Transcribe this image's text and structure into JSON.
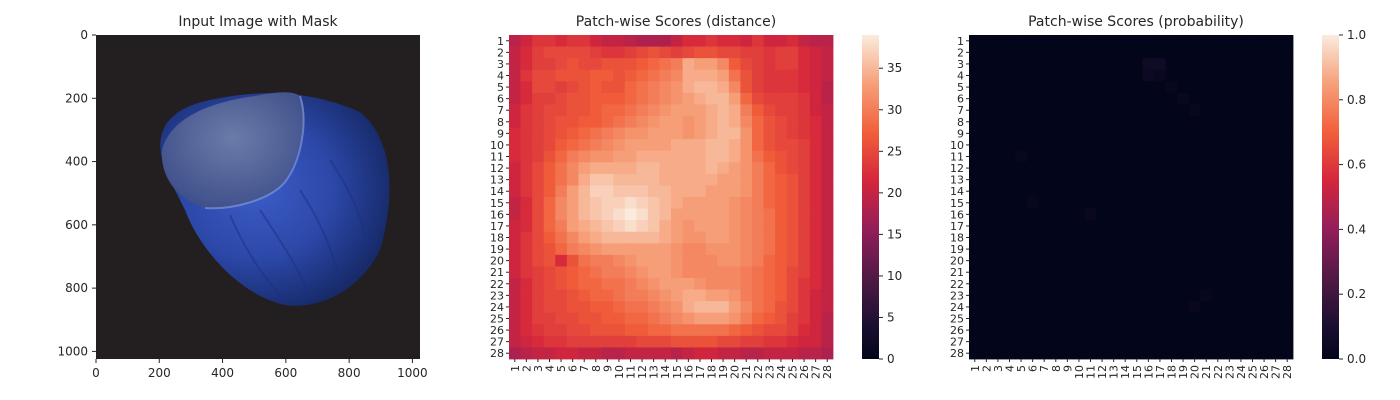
{
  "chart_data": [
    {
      "type": "image",
      "title": "Input Image with Mask",
      "xlim": [
        0,
        1024
      ],
      "ylim": [
        1024,
        0
      ],
      "xticks": [
        0,
        200,
        400,
        600,
        800,
        1000
      ],
      "yticks": [
        0,
        200,
        400,
        600,
        800,
        1000
      ],
      "image_content": "blue-tinted hazelnut on dark background"
    },
    {
      "type": "heatmap",
      "title": "Patch-wise Scores (distance)",
      "colormap": "rocket",
      "rows": 28,
      "cols": 28,
      "row_labels": [
        "1",
        "2",
        "3",
        "4",
        "5",
        "6",
        "7",
        "8",
        "9",
        "10",
        "11",
        "12",
        "13",
        "14",
        "15",
        "16",
        "17",
        "18",
        "19",
        "20",
        "21",
        "22",
        "23",
        "24",
        "25",
        "26",
        "27",
        "28"
      ],
      "col_labels": [
        "1",
        "2",
        "3",
        "4",
        "5",
        "6",
        "7",
        "8",
        "9",
        "10",
        "11",
        "12",
        "13",
        "14",
        "15",
        "16",
        "17",
        "18",
        "19",
        "20",
        "21",
        "22",
        "23",
        "24",
        "25",
        "26",
        "27",
        "28"
      ],
      "vmin": 0,
      "vmax": 39,
      "colorbar_ticks": [
        0,
        5,
        10,
        15,
        20,
        25,
        30,
        35
      ],
      "values": [
        [
          19,
          21,
          23,
          23,
          22,
          23,
          23,
          21,
          20,
          20,
          19,
          18,
          18,
          18,
          20,
          22,
          22,
          23,
          22,
          22,
          21,
          23,
          21,
          21,
          22,
          20,
          19,
          19
        ],
        [
          20,
          22,
          24,
          25,
          25,
          25,
          25,
          24,
          23,
          23,
          24,
          25,
          26,
          25,
          24,
          25,
          26,
          26,
          25,
          25,
          24,
          24,
          23,
          24,
          24,
          22,
          21,
          20
        ],
        [
          20,
          22,
          24,
          24,
          25,
          26,
          25,
          25,
          26,
          26,
          26,
          27,
          28,
          29,
          30,
          34,
          33,
          33,
          31,
          27,
          25,
          24,
          23,
          24,
          24,
          22,
          21,
          20
        ],
        [
          20,
          23,
          25,
          25,
          26,
          26,
          26,
          27,
          27,
          26,
          27,
          28,
          29,
          30,
          31,
          34,
          34,
          34,
          33,
          29,
          26,
          24,
          23,
          23,
          23,
          22,
          21,
          20
        ],
        [
          20,
          22,
          25,
          25,
          24,
          25,
          26,
          27,
          26,
          26,
          28,
          29,
          30,
          31,
          32,
          34,
          35,
          35,
          34,
          31,
          26,
          24,
          23,
          23,
          23,
          22,
          21,
          19
        ],
        [
          20,
          22,
          24,
          24,
          25,
          26,
          26,
          27,
          27,
          27,
          28,
          29,
          30,
          31,
          32,
          33,
          34,
          35,
          35,
          33,
          28,
          25,
          24,
          24,
          24,
          23,
          21,
          19
        ],
        [
          21,
          23,
          24,
          25,
          25,
          26,
          26,
          27,
          28,
          28,
          29,
          30,
          31,
          32,
          33,
          33,
          33,
          34,
          35,
          34,
          30,
          27,
          25,
          24,
          24,
          23,
          21,
          20
        ],
        [
          21,
          23,
          24,
          25,
          26,
          26,
          27,
          27,
          28,
          29,
          30,
          31,
          32,
          33,
          33,
          32,
          33,
          34,
          35,
          34,
          31,
          28,
          26,
          25,
          24,
          23,
          22,
          20
        ],
        [
          22,
          23,
          24,
          25,
          26,
          27,
          28,
          29,
          30,
          31,
          32,
          32,
          33,
          33,
          33,
          32,
          33,
          34,
          35,
          35,
          32,
          28,
          26,
          25,
          24,
          23,
          22,
          20
        ],
        [
          22,
          23,
          24,
          25,
          27,
          28,
          29,
          30,
          31,
          32,
          33,
          33,
          33,
          33,
          34,
          34,
          34,
          35,
          35,
          34,
          32,
          28,
          26,
          25,
          25,
          24,
          22,
          20
        ],
        [
          22,
          23,
          24,
          26,
          28,
          30,
          31,
          32,
          32,
          33,
          33,
          34,
          34,
          34,
          34,
          34,
          34,
          35,
          35,
          34,
          32,
          29,
          27,
          26,
          25,
          24,
          22,
          20
        ],
        [
          21,
          23,
          25,
          27,
          29,
          31,
          33,
          34,
          34,
          34,
          34,
          35,
          35,
          34,
          34,
          34,
          34,
          35,
          34,
          33,
          32,
          30,
          28,
          26,
          25,
          24,
          22,
          20
        ],
        [
          21,
          23,
          25,
          27,
          29,
          31,
          34,
          36,
          36,
          35,
          35,
          35,
          35,
          34,
          34,
          34,
          34,
          34,
          33,
          33,
          32,
          30,
          28,
          27,
          26,
          24,
          22,
          20
        ],
        [
          21,
          23,
          25,
          27,
          30,
          33,
          35,
          37,
          37,
          36,
          36,
          36,
          35,
          35,
          34,
          34,
          34,
          33,
          33,
          33,
          32,
          30,
          28,
          27,
          26,
          24,
          22,
          20
        ],
        [
          20,
          22,
          25,
          28,
          31,
          33,
          35,
          36,
          37,
          37,
          38,
          37,
          36,
          35,
          34,
          33,
          33,
          33,
          33,
          32,
          31,
          30,
          28,
          27,
          26,
          24,
          22,
          20
        ],
        [
          20,
          22,
          25,
          28,
          31,
          33,
          35,
          36,
          37,
          38,
          39,
          38,
          36,
          35,
          33,
          33,
          33,
          33,
          33,
          32,
          31,
          30,
          29,
          27,
          26,
          24,
          22,
          20
        ],
        [
          21,
          22,
          25,
          28,
          30,
          33,
          34,
          35,
          36,
          37,
          38,
          37,
          36,
          34,
          33,
          32,
          33,
          33,
          33,
          32,
          31,
          30,
          29,
          27,
          26,
          24,
          22,
          20
        ],
        [
          21,
          23,
          25,
          27,
          29,
          31,
          33,
          34,
          35,
          35,
          35,
          35,
          35,
          34,
          33,
          32,
          32,
          33,
          33,
          32,
          31,
          30,
          29,
          27,
          26,
          24,
          22,
          20
        ],
        [
          21,
          23,
          25,
          26,
          28,
          30,
          31,
          32,
          33,
          33,
          33,
          33,
          33,
          33,
          32,
          31,
          31,
          32,
          32,
          32,
          31,
          30,
          29,
          27,
          26,
          24,
          22,
          20
        ],
        [
          21,
          23,
          25,
          26,
          22,
          26,
          29,
          30,
          30,
          31,
          32,
          33,
          33,
          33,
          32,
          31,
          31,
          31,
          32,
          32,
          31,
          30,
          28,
          27,
          26,
          24,
          22,
          20
        ],
        [
          21,
          23,
          24,
          25,
          26,
          27,
          28,
          29,
          30,
          30,
          31,
          32,
          33,
          33,
          32,
          31,
          31,
          31,
          31,
          31,
          30,
          29,
          28,
          27,
          25,
          24,
          22,
          20
        ],
        [
          20,
          22,
          24,
          25,
          26,
          27,
          28,
          28,
          29,
          29,
          30,
          31,
          32,
          33,
          33,
          33,
          32,
          31,
          31,
          31,
          30,
          29,
          28,
          27,
          25,
          23,
          22,
          20
        ],
        [
          20,
          22,
          24,
          25,
          25,
          26,
          27,
          28,
          28,
          29,
          30,
          30,
          31,
          32,
          33,
          34,
          34,
          33,
          33,
          32,
          30,
          29,
          28,
          27,
          25,
          23,
          21,
          20
        ],
        [
          20,
          22,
          24,
          25,
          25,
          26,
          26,
          27,
          27,
          28,
          29,
          29,
          30,
          31,
          32,
          34,
          35,
          35,
          35,
          33,
          31,
          29,
          28,
          26,
          25,
          23,
          21,
          20
        ],
        [
          20,
          22,
          24,
          24,
          25,
          25,
          26,
          26,
          27,
          27,
          28,
          28,
          29,
          30,
          31,
          32,
          33,
          33,
          33,
          32,
          30,
          28,
          27,
          26,
          24,
          23,
          21,
          19
        ],
        [
          20,
          22,
          23,
          24,
          24,
          25,
          25,
          26,
          26,
          26,
          27,
          27,
          28,
          28,
          29,
          29,
          29,
          29,
          29,
          28,
          27,
          26,
          25,
          25,
          24,
          22,
          21,
          19
        ],
        [
          20,
          21,
          22,
          23,
          23,
          24,
          24,
          24,
          24,
          24,
          24,
          25,
          25,
          25,
          26,
          26,
          26,
          26,
          25,
          25,
          24,
          24,
          23,
          23,
          22,
          21,
          21,
          19
        ],
        [
          18,
          19,
          20,
          20,
          21,
          21,
          20,
          20,
          19,
          19,
          20,
          20,
          20,
          20,
          19,
          20,
          21,
          21,
          20,
          20,
          19,
          19,
          20,
          20,
          20,
          19,
          19,
          18
        ]
      ]
    },
    {
      "type": "heatmap",
      "title": "Patch-wise Scores (probability)",
      "colormap": "rocket",
      "rows": 28,
      "cols": 28,
      "row_labels": [
        "1",
        "2",
        "3",
        "4",
        "5",
        "6",
        "7",
        "8",
        "9",
        "10",
        "11",
        "12",
        "13",
        "14",
        "15",
        "16",
        "17",
        "18",
        "19",
        "20",
        "21",
        "22",
        "23",
        "24",
        "25",
        "26",
        "27",
        "28"
      ],
      "col_labels": [
        "1",
        "2",
        "3",
        "4",
        "5",
        "6",
        "7",
        "8",
        "9",
        "10",
        "11",
        "12",
        "13",
        "14",
        "15",
        "16",
        "17",
        "18",
        "19",
        "20",
        "21",
        "22",
        "23",
        "24",
        "25",
        "26",
        "27",
        "28"
      ],
      "vmin": 0,
      "vmax": 1,
      "colorbar_ticks": [
        "0.0",
        "0.2",
        "0.4",
        "0.6",
        "0.8",
        "1.0"
      ],
      "base_value": 0.0,
      "hotspots": [
        {
          "row": 3,
          "col": 16,
          "value": 0.05
        },
        {
          "row": 3,
          "col": 17,
          "value": 0.05
        },
        {
          "row": 4,
          "col": 16,
          "value": 0.04
        },
        {
          "row": 4,
          "col": 17,
          "value": 0.03
        },
        {
          "row": 5,
          "col": 18,
          "value": 0.02
        },
        {
          "row": 6,
          "col": 19,
          "value": 0.03
        },
        {
          "row": 7,
          "col": 20,
          "value": 0.02
        },
        {
          "row": 11,
          "col": 5,
          "value": 0.02
        },
        {
          "row": 15,
          "col": 6,
          "value": 0.02
        },
        {
          "row": 16,
          "col": 11,
          "value": 0.03
        },
        {
          "row": 23,
          "col": 21,
          "value": 0.02
        },
        {
          "row": 24,
          "col": 20,
          "value": 0.02
        }
      ]
    }
  ]
}
